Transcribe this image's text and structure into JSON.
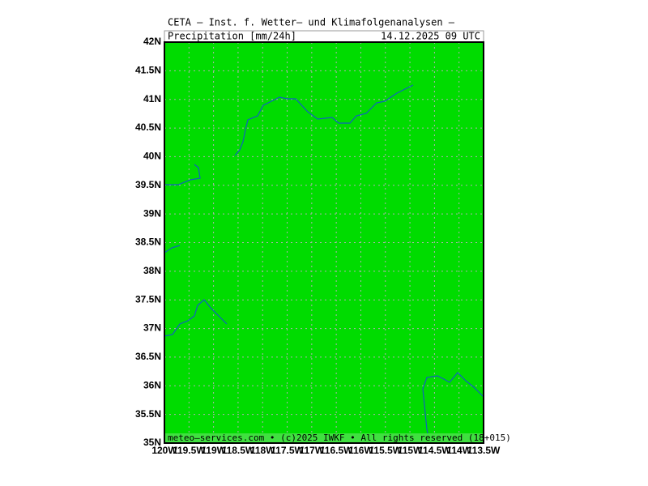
{
  "title": "CETA — Inst. f. Wetter— und Klimafolgenanalysen —",
  "parameter": "Precipitation [mm/24h]",
  "valid_time": "14.12.2025 09 UTC",
  "footer": "meteo—services.com • (c)2025 IWKF • All rights reserved (18+015)",
  "lat_ticks": [
    {
      "value": 35,
      "label": "35N"
    },
    {
      "value": 35.5,
      "label": "35.5N"
    },
    {
      "value": 36,
      "label": "36N"
    },
    {
      "value": 36.5,
      "label": "36.5N"
    },
    {
      "value": 37,
      "label": "37N"
    },
    {
      "value": 37.5,
      "label": "37.5N"
    },
    {
      "value": 38,
      "label": "38N"
    },
    {
      "value": 38.5,
      "label": "38.5N"
    },
    {
      "value": 39,
      "label": "39N"
    },
    {
      "value": 39.5,
      "label": "39.5N"
    },
    {
      "value": 40,
      "label": "40N"
    },
    {
      "value": 40.5,
      "label": "40.5N"
    },
    {
      "value": 41,
      "label": "41N"
    },
    {
      "value": 41.5,
      "label": "41.5N"
    },
    {
      "value": 42,
      "label": "42N"
    }
  ],
  "lat_range": [
    35,
    42
  ],
  "lon_ticks": [
    {
      "value": -120,
      "label": "120W"
    },
    {
      "value": -119.5,
      "label": "119.5W"
    },
    {
      "value": -119,
      "label": "119W"
    },
    {
      "value": -118.5,
      "label": "118.5W"
    },
    {
      "value": -118,
      "label": "118W"
    },
    {
      "value": -117.5,
      "label": "117.5W"
    },
    {
      "value": -117,
      "label": "117W"
    },
    {
      "value": -116.5,
      "label": "116.5W"
    },
    {
      "value": -116,
      "label": "116W"
    },
    {
      "value": -115.5,
      "label": "115.5W"
    },
    {
      "value": -115,
      "label": "115W"
    },
    {
      "value": -114.5,
      "label": "114.5W"
    },
    {
      "value": -114,
      "label": "114W"
    },
    {
      "value": -113.5,
      "label": "113.5W"
    }
  ],
  "lon_range": [
    -120,
    -113.5
  ],
  "field_color": "#00dc00"
}
